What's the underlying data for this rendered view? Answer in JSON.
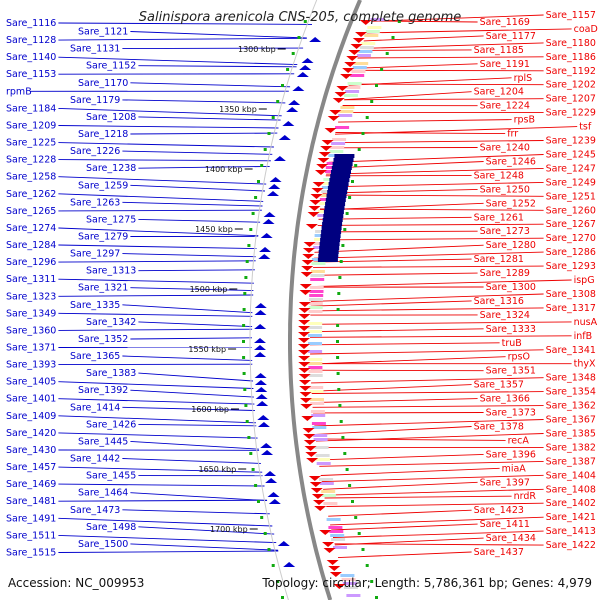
{
  "title": "Salinispora arenicola CNS-205, complete genome",
  "accession": "Accession: NC_009953",
  "stats": "Topology: circular; Length: 5,786,361 bp; Genes: 4,979",
  "colors": {
    "reverse_strand": "#0000cc",
    "forward_strand": "#ee0000",
    "backbone": "#888888",
    "dot": "#11aa11"
  },
  "scale_ticks": [
    "1300 kbp",
    "1350 kbp",
    "1400 kbp",
    "1450 kbp",
    "1500 kbp",
    "1550 kbp",
    "1600 kbp",
    "1650 kbp",
    "1700 kbp"
  ],
  "left_genes": [
    "Sare_1116",
    "Sare_1121",
    "Sare_1128",
    "Sare_1131",
    "Sare_1140",
    "Sare_1152",
    "Sare_1153",
    "Sare_1170",
    "rpmB",
    "Sare_1179",
    "Sare_1184",
    "Sare_1208",
    "Sare_1209",
    "Sare_1218",
    "Sare_1225",
    "Sare_1226",
    "Sare_1228",
    "Sare_1238",
    "Sare_1258",
    "Sare_1259",
    "Sare_1262",
    "Sare_1263",
    "Sare_1265",
    "Sare_1275",
    "Sare_1274",
    "Sare_1279",
    "Sare_1284",
    "Sare_1297",
    "Sare_1296",
    "Sare_1313",
    "Sare_1311",
    "Sare_1321",
    "Sare_1323",
    "Sare_1335",
    "Sare_1349",
    "Sare_1342",
    "Sare_1360",
    "Sare_1352",
    "Sare_1371",
    "Sare_1365",
    "Sare_1393",
    "Sare_1383",
    "Sare_1405",
    "Sare_1392",
    "Sare_1401",
    "Sare_1414",
    "Sare_1409",
    "Sare_1426",
    "Sare_1420",
    "Sare_1445",
    "Sare_1430",
    "Sare_1442",
    "Sare_1457",
    "Sare_1455",
    "Sare_1469",
    "Sare_1464",
    "Sare_1481",
    "Sare_1473",
    "Sare_1491",
    "Sare_1498",
    "Sare_1511",
    "Sare_1500",
    "Sare_1515"
  ],
  "right_genes": [
    "Sare_1157",
    "Sare_1169",
    "coaD",
    "Sare_1177",
    "Sare_1180",
    "Sare_1185",
    "Sare_1186",
    "Sare_1191",
    "Sare_1192",
    "rplS",
    "Sare_1202",
    "Sare_1204",
    "Sare_1207",
    "Sare_1224",
    "Sare_1229",
    "rpsB",
    "tsf",
    "frr",
    "Sare_1239",
    "Sare_1240",
    "Sare_1245",
    "Sare_1246",
    "Sare_1247",
    "Sare_1248",
    "Sare_1249",
    "Sare_1250",
    "Sare_1251",
    "Sare_1252",
    "Sare_1260",
    "Sare_1261",
    "Sare_1267",
    "Sare_1273",
    "Sare_1270",
    "Sare_1280",
    "Sare_1286",
    "Sare_1281",
    "Sare_1293",
    "Sare_1289",
    "ispG",
    "Sare_1300",
    "Sare_1308",
    "Sare_1316",
    "Sare_1317",
    "Sare_1324",
    "nusA",
    "Sare_1333",
    "infB",
    "truB",
    "Sare_1341",
    "rpsO",
    "thyX",
    "Sare_1351",
    "Sare_1348",
    "Sare_1357",
    "Sare_1354",
    "Sare_1366",
    "Sare_1362",
    "Sare_1373",
    "Sare_1367",
    "Sare_1378",
    "Sare_1385",
    "recA",
    "Sare_1382",
    "Sare_1396",
    "Sare_1387",
    "miaA",
    "Sare_1404",
    "Sare_1397",
    "Sare_1408",
    "nrdR",
    "Sare_1402",
    "Sare_1423",
    "Sare_1421",
    "Sare_1411",
    "Sare_1413",
    "Sare_1434",
    "Sare_1422",
    "Sare_1437"
  ]
}
